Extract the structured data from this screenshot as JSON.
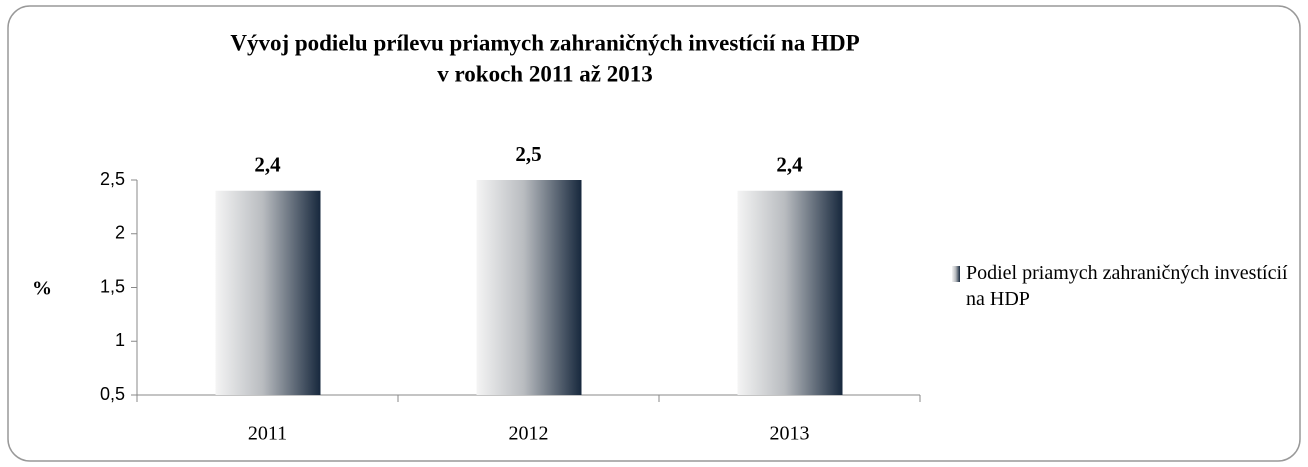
{
  "chart_data": {
    "type": "bar",
    "title": "Vývoj podielu prílevu priamych zahraničných investícií na HDP",
    "subtitle": "v rokoch 2011 až 2013",
    "y_label": "%",
    "categories": [
      "2011",
      "2012",
      "2013"
    ],
    "series": [
      {
        "name": "Podiel priamych zahraničných investícií na HDP",
        "color": "#17283d",
        "values": [
          2.4,
          2.5,
          2.4
        ],
        "value_labels": [
          "2,4",
          "2,5",
          "2,4"
        ]
      }
    ],
    "ylim": [
      0.5,
      2.5
    ],
    "yticks": [
      {
        "value": 0.5,
        "label": "0,5"
      },
      1,
      {
        "value": 1.5,
        "label": "1,5"
      },
      2,
      {
        "value": 2.5,
        "label": "2,5"
      }
    ],
    "grid": false,
    "legend": "right"
  }
}
